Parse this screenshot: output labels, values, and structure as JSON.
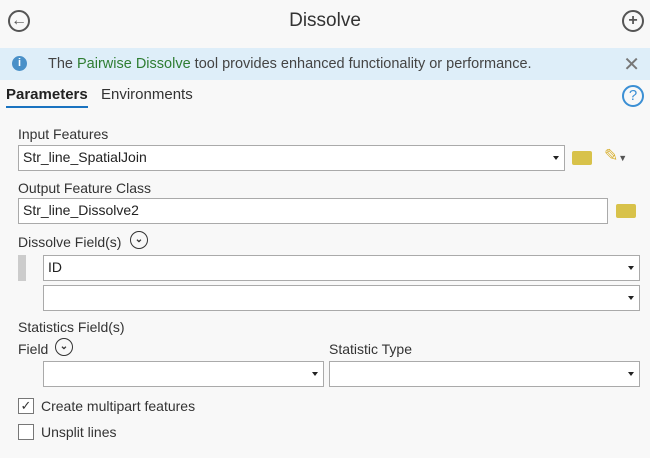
{
  "header": {
    "title": "Dissolve",
    "back_icon": "arrow-left-circle-icon",
    "add_icon": "plus-circle-icon"
  },
  "banner": {
    "prefix": "The ",
    "link": "Pairwise Dissolve",
    "suffix": " tool provides enhanced functionality or performance.",
    "close": "✕"
  },
  "tabs": [
    {
      "label": "Parameters",
      "active": true
    },
    {
      "label": "Environments",
      "active": false
    }
  ],
  "help": "?",
  "params": {
    "input_label": "Input Features",
    "input_value": "Str_line_SpatialJoin",
    "output_label": "Output Feature Class",
    "output_value": "Str_line_Dissolve2",
    "dissolve_label": "Dissolve Field(s)",
    "dissolve_values": [
      "ID",
      ""
    ],
    "stats_label": "Statistics Field(s)",
    "field_label": "Field",
    "stat_type_label": "Statistic Type",
    "field_value": "",
    "stat_type_value": "",
    "multipart_label": "Create multipart features",
    "multipart_checked": true,
    "unsplit_label": "Unsplit lines",
    "unsplit_checked": false
  },
  "colors": {
    "accent": "#1a73c0",
    "banner": "#deeef9",
    "folder": "#d8c24a"
  }
}
